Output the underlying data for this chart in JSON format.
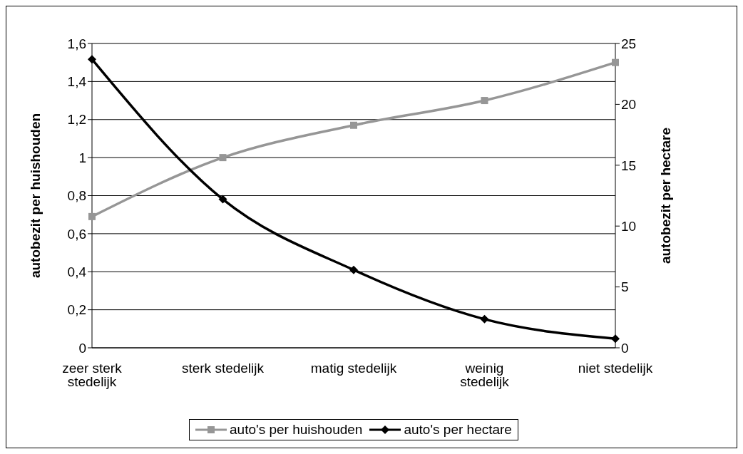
{
  "chart_data": {
    "type": "line",
    "categories": [
      "zeer sterk stedelijk",
      "sterk stedelijk",
      "matig stedelijk",
      "weinig stedelijk",
      "niet stedelijk"
    ],
    "ylabel": "autobezit per huishouden",
    "y2label": "autobezit per hectare",
    "series": [
      {
        "name": "auto's per huishouden",
        "color": "#969696",
        "marker": "square",
        "values": [
          0.69,
          1.0,
          1.17,
          1.3,
          1.5
        ]
      },
      {
        "name": "auto's per hectare",
        "color": "#000000",
        "marker": "diamond",
        "axis": "y2",
        "values": [
          23.7,
          12.2,
          6.4,
          2.35,
          0.75
        ]
      }
    ],
    "ylim": [
      0,
      1.6
    ],
    "yticks": [
      {
        "value": 0,
        "label": "0"
      },
      {
        "value": 0.2,
        "label": "0,2"
      },
      {
        "value": 0.4,
        "label": "0,4"
      },
      {
        "value": 0.6,
        "label": "0,6"
      },
      {
        "value": 0.8,
        "label": "0,8"
      },
      {
        "value": 1,
        "label": "1"
      },
      {
        "value": 1.2,
        "label": "1,2"
      },
      {
        "value": 1.4,
        "label": "1,4"
      },
      {
        "value": 1.6,
        "label": "1,6"
      }
    ],
    "y2lim": [
      0,
      25
    ],
    "y2ticks": [
      0,
      5,
      10,
      15,
      20,
      25
    ],
    "grid": "y",
    "legend": "bottom",
    "line_style": "solid"
  }
}
